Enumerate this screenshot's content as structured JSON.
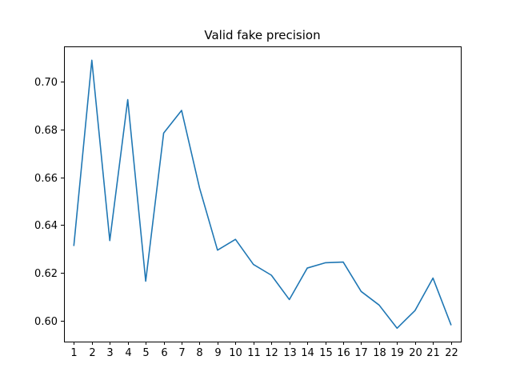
{
  "chart_data": {
    "type": "line",
    "title": "Valid fake precision",
    "xlabel": "",
    "ylabel": "",
    "x": [
      1,
      2,
      3,
      4,
      5,
      6,
      7,
      8,
      9,
      10,
      11,
      12,
      13,
      14,
      15,
      16,
      17,
      18,
      19,
      20,
      21,
      22
    ],
    "series": [
      {
        "values": [
          0.6315,
          0.709,
          0.6335,
          0.6925,
          0.6165,
          0.6785,
          0.688,
          0.6555,
          0.6295,
          0.634,
          0.6235,
          0.619,
          0.6088,
          0.622,
          0.6242,
          0.6245,
          0.6122,
          0.6065,
          0.5968,
          0.6042,
          0.6178,
          0.5983
        ],
        "color": "#1f77b4"
      }
    ],
    "xlim": [
      0.45,
      22.55
    ],
    "ylim": [
      0.5912,
      0.7148
    ],
    "yticks": [
      0.6,
      0.62,
      0.64,
      0.66,
      0.68,
      0.7
    ],
    "ytick_labels": [
      "0.60",
      "0.62",
      "0.64",
      "0.66",
      "0.68",
      "0.70"
    ],
    "grid": false,
    "legend": "none"
  }
}
